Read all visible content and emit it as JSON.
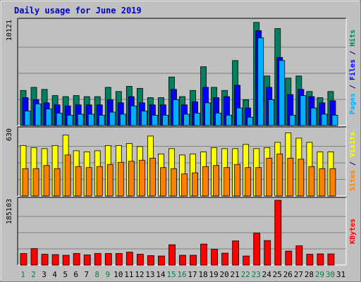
{
  "chart_data": {
    "type": "bar",
    "title": "Daily usage for June 2019",
    "categories": [
      "1",
      "2",
      "3",
      "4",
      "5",
      "6",
      "7",
      "8",
      "9",
      "10",
      "11",
      "12",
      "13",
      "14",
      "15",
      "16",
      "17",
      "18",
      "19",
      "20",
      "21",
      "22",
      "23",
      "24",
      "25",
      "26",
      "27",
      "28",
      "29",
      "30",
      "31"
    ],
    "weekend_days": [
      "1",
      "2",
      "8",
      "9",
      "15",
      "16",
      "22",
      "23",
      "29",
      "30"
    ],
    "grid": true,
    "panels": [
      {
        "id": "hits",
        "ymax_label": "10121",
        "ylim": [
          0,
          10121
        ],
        "side_labels": [
          {
            "text": "Pages",
            "color": "#00B0FF"
          },
          {
            "text": " / ",
            "color": "#000080"
          },
          {
            "text": "Files",
            "color": "#0000FF"
          },
          {
            "text": " / ",
            "color": "#000080"
          },
          {
            "text": "Hits",
            "color": "#008060"
          }
        ],
        "series": [
          {
            "name": "Hits",
            "color": "#008060",
            "values": [
              3400,
              3700,
              3500,
              2900,
              2800,
              2900,
              2800,
              2800,
              3700,
              3300,
              3800,
              3600,
              2700,
              2700,
              4700,
              2800,
              3400,
              5700,
              3700,
              3400,
              6300,
              2500,
              10000,
              4800,
              9400,
              4600,
              4800,
              3300,
              2700,
              3300,
              0
            ]
          },
          {
            "name": "Files",
            "color": "#0000FF",
            "values": [
              2700,
              2500,
              2200,
              2000,
              1900,
              2000,
              2000,
              2000,
              2500,
              2200,
              2800,
              2200,
              2000,
              2000,
              3500,
              2000,
              2300,
              3700,
              2700,
              2800,
              3900,
              1700,
              9200,
              3700,
              6600,
              3000,
              3500,
              2800,
              2200,
              2400,
              0
            ]
          },
          {
            "name": "Pages",
            "color": "#00B0FF",
            "values": [
              1400,
              2100,
              1600,
              1200,
              1000,
              1100,
              1100,
              1000,
              1300,
              1100,
              1900,
              1400,
              1000,
              1000,
              2500,
              1100,
              1200,
              2200,
              1200,
              1000,
              1700,
              800,
              8500,
              2500,
              6300,
              1000,
              2900,
              1700,
              1100,
              1000,
              0
            ]
          }
        ]
      },
      {
        "id": "visits",
        "ymax_label": "630",
        "ylim": [
          0,
          630
        ],
        "side_labels": [
          {
            "text": "Sites",
            "color": "#FF8000"
          },
          {
            "text": " / ",
            "color": "#000080"
          },
          {
            "text": "Visits",
            "color": "#FFFF00"
          }
        ],
        "series": [
          {
            "name": "Visits",
            "color": "#FFFF00",
            "values": [
              480,
              460,
              450,
              480,
              580,
              430,
              420,
              430,
              480,
              480,
              500,
              470,
              570,
              400,
              450,
              390,
              400,
              420,
              460,
              450,
              450,
              490,
              450,
              460,
              510,
              600,
              550,
              510,
              420,
              420,
              0
            ]
          },
          {
            "name": "Sites",
            "color": "#FF8000",
            "values": [
              260,
              260,
              290,
              260,
              390,
              280,
              270,
              280,
              300,
              320,
              330,
              340,
              360,
              270,
              260,
              210,
              220,
              280,
              290,
              270,
              300,
              270,
              270,
              360,
              400,
              360,
              350,
              280,
              260,
              260,
              0
            ]
          }
        ]
      },
      {
        "id": "kbytes",
        "ymax_label": "185103",
        "ylim": [
          0,
          185103
        ],
        "side_labels": [
          {
            "text": "KBytes",
            "color": "#FF0000"
          }
        ],
        "series": [
          {
            "name": "KBytes",
            "color": "#FF0000",
            "values": [
              33000,
              47000,
              31000,
              30000,
              28000,
              33000,
              29000,
              33000,
              33000,
              33000,
              37000,
              31000,
              27000,
              26000,
              58000,
              28000,
              28000,
              60000,
              45000,
              34000,
              69000,
              26000,
              91000,
              70000,
              185103,
              40000,
              55000,
              31000,
              32000,
              32000,
              0
            ]
          }
        ]
      }
    ]
  }
}
